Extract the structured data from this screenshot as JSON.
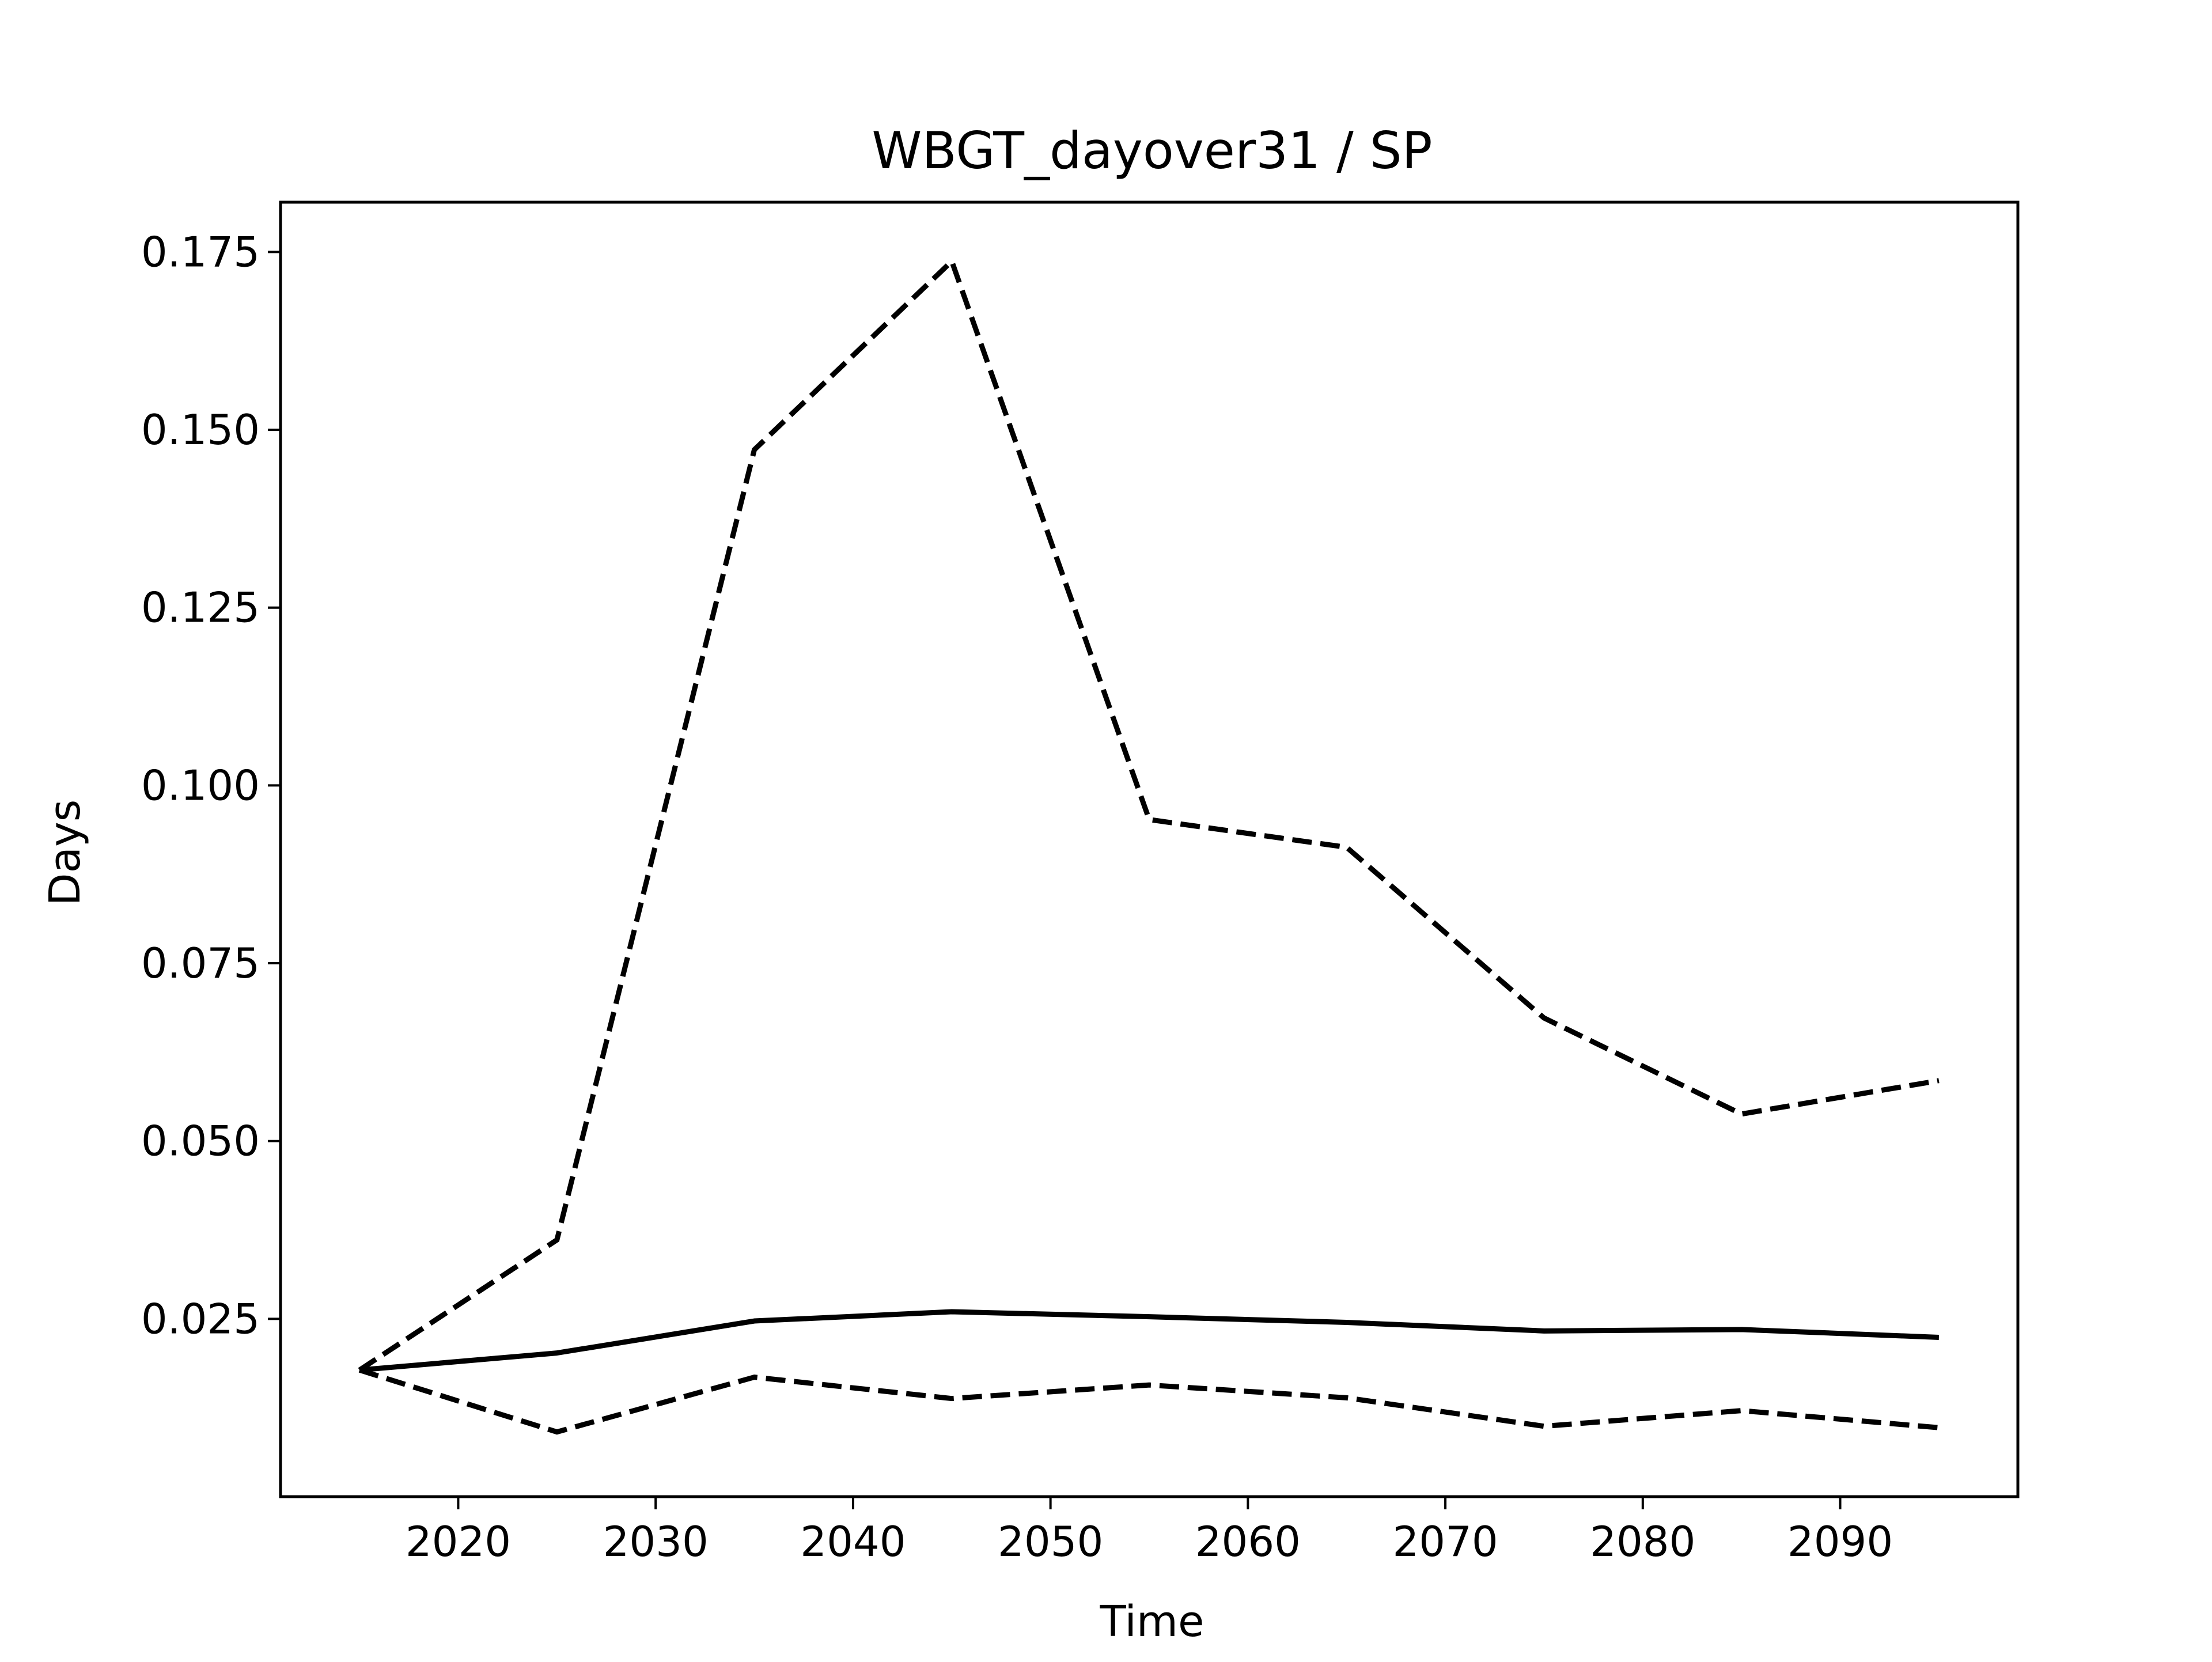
{
  "chart_data": {
    "type": "line",
    "title": "WBGT_dayover31 / SP",
    "xlabel": "Time",
    "ylabel": "Days",
    "xlim": [
      2011,
      2099
    ],
    "ylim": [
      0.0,
      0.182
    ],
    "x_ticks": [
      2020,
      2030,
      2040,
      2050,
      2060,
      2070,
      2080,
      2090
    ],
    "y_ticks": [
      0.025,
      0.05,
      0.075,
      0.1,
      0.125,
      0.15,
      0.175
    ],
    "y_tick_labels": [
      "0.025",
      "0.050",
      "0.075",
      "0.100",
      "0.125",
      "0.150",
      "0.175"
    ],
    "grid": false,
    "legend": "none",
    "line_color": "#000000",
    "x": [
      2015,
      2025,
      2035,
      2045,
      2055,
      2065,
      2075,
      2085,
      2095
    ],
    "series": [
      {
        "style": "solid",
        "values": [
          0.0178,
          0.0202,
          0.0247,
          0.026,
          0.0253,
          0.0245,
          0.0233,
          0.0235,
          0.0224
        ]
      },
      {
        "style": "dashed",
        "values": [
          0.0178,
          0.0361,
          0.1472,
          0.1737,
          0.0952,
          0.0913,
          0.0673,
          0.0538,
          0.0585
        ]
      },
      {
        "style": "dashed",
        "values": [
          0.0178,
          0.0091,
          0.0168,
          0.0138,
          0.0157,
          0.0139,
          0.0099,
          0.0121,
          0.0097
        ]
      }
    ]
  }
}
